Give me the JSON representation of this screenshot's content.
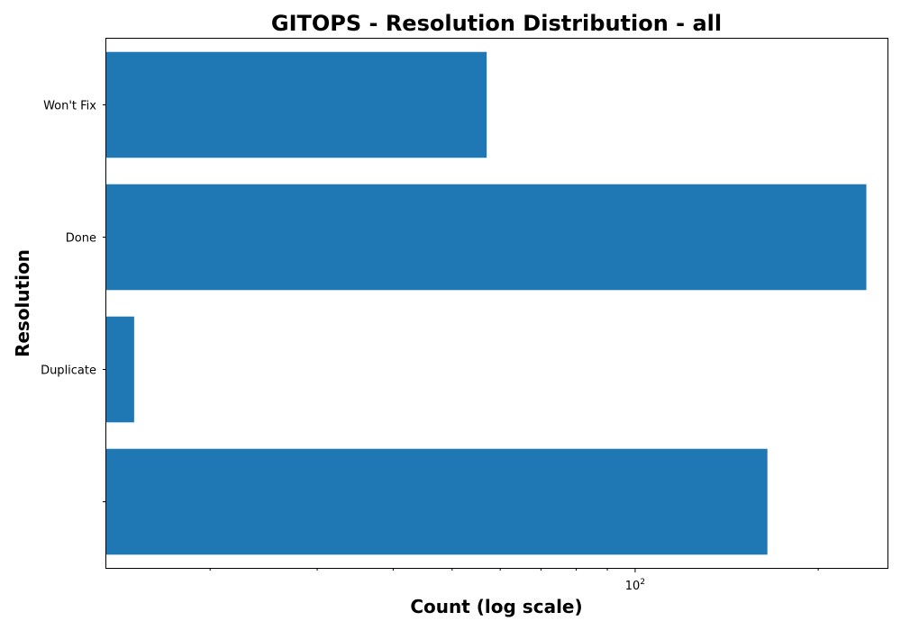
{
  "chart_data": {
    "type": "bar",
    "orientation": "horizontal",
    "title": "GITOPS - Resolution Distribution - all",
    "xlabel": "Count (log scale)",
    "ylabel": "Resolution",
    "x_scale": "log",
    "xlim": [
      13.5,
      260
    ],
    "categories": [
      "",
      "Duplicate",
      "Done",
      "Won't Fix"
    ],
    "values": [
      165,
      15,
      240,
      57
    ],
    "bar_color": "#1f77b4",
    "x_major_ticks": [
      {
        "value": 100,
        "base": "10",
        "exponent": "2"
      }
    ],
    "x_minor_ticks": [
      20,
      30,
      40,
      50,
      60,
      70,
      80,
      90,
      200
    ],
    "grid": false,
    "legend": "none"
  }
}
